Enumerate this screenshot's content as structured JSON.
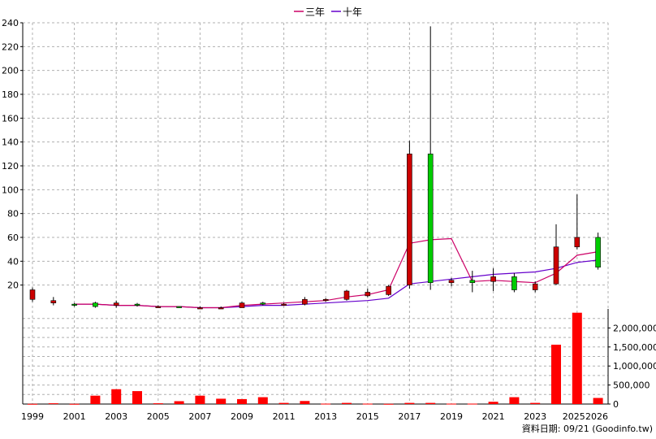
{
  "chart_data": {
    "type": "candlestick",
    "legend": {
      "placement": "top-center",
      "items": [
        {
          "name": "三年",
          "color": "#cc0066"
        },
        {
          "name": "十年",
          "color": "#6600cc"
        }
      ]
    },
    "price_axis": {
      "ylim": [
        0,
        240
      ],
      "ticks": [
        "20",
        "40",
        "60",
        "80",
        "100",
        "120",
        "140",
        "160",
        "180",
        "200",
        "220",
        "240"
      ],
      "side": "left"
    },
    "volume_axis": {
      "ylim": [
        0,
        2500000
      ],
      "ticks": [
        "0",
        "500,000",
        "1,000,000",
        "1,500,000",
        "2,000,000"
      ],
      "side": "right"
    },
    "x_ticks": [
      "1999",
      "2001",
      "2003",
      "2005",
      "2007",
      "2009",
      "2011",
      "2013",
      "2015",
      "2017",
      "2019",
      "2021",
      "2023",
      "2025",
      "2026"
    ],
    "grid": true,
    "candles": [
      {
        "year": 1999,
        "open": 8,
        "high": 18,
        "low": 6,
        "close": 16
      },
      {
        "year": 2000,
        "open": 5,
        "high": 10,
        "low": 3,
        "close": 7
      },
      {
        "year": 2001,
        "open": 4,
        "high": 5,
        "low": 2,
        "close": 3
      },
      {
        "year": 2002,
        "open": 5,
        "high": 6,
        "low": 1,
        "close": 2
      },
      {
        "year": 2003,
        "open": 3,
        "high": 7,
        "low": 1,
        "close": 5
      },
      {
        "year": 2004,
        "open": 4,
        "high": 5,
        "low": 2,
        "close": 3
      },
      {
        "year": 2005,
        "open": 2,
        "high": 3,
        "low": 1,
        "close": 2
      },
      {
        "year": 2006,
        "open": 2,
        "high": 2,
        "low": 1,
        "close": 1
      },
      {
        "year": 2007,
        "open": 1,
        "high": 2,
        "low": 0,
        "close": 1
      },
      {
        "year": 2008,
        "open": 1,
        "high": 2,
        "low": 0,
        "close": 1
      },
      {
        "year": 2009,
        "open": 1,
        "high": 6,
        "low": 1,
        "close": 5
      },
      {
        "year": 2010,
        "open": 5,
        "high": 6,
        "low": 3,
        "close": 4
      },
      {
        "year": 2011,
        "open": 4,
        "high": 5,
        "low": 3,
        "close": 4
      },
      {
        "year": 2012,
        "open": 4,
        "high": 10,
        "low": 3,
        "close": 8
      },
      {
        "year": 2013,
        "open": 7,
        "high": 9,
        "low": 6,
        "close": 8
      },
      {
        "year": 2014,
        "open": 8,
        "high": 16,
        "low": 7,
        "close": 15
      },
      {
        "year": 2015,
        "open": 11,
        "high": 17,
        "low": 10,
        "close": 14
      },
      {
        "year": 2016,
        "open": 12,
        "high": 20,
        "low": 11,
        "close": 19
      },
      {
        "year": 2017,
        "open": 20,
        "high": 141,
        "low": 17,
        "close": 130
      },
      {
        "year": 2018,
        "open": 130,
        "high": 237,
        "low": 16,
        "close": 22
      },
      {
        "year": 2019,
        "open": 22,
        "high": 26,
        "low": 19,
        "close": 24
      },
      {
        "year": 2020,
        "open": 24,
        "high": 32,
        "low": 14,
        "close": 22
      },
      {
        "year": 2021,
        "open": 23,
        "high": 34,
        "low": 15,
        "close": 27
      },
      {
        "year": 2022,
        "open": 27,
        "high": 30,
        "low": 14,
        "close": 16
      },
      {
        "year": 2023,
        "open": 16,
        "high": 23,
        "low": 14,
        "close": 21
      },
      {
        "year": 2024,
        "open": 21,
        "high": 71,
        "low": 20,
        "close": 52
      },
      {
        "year": 2025,
        "open": 52,
        "high": 96,
        "low": 50,
        "close": 60
      },
      {
        "year": 2026,
        "open": 60,
        "high": 64,
        "low": 33,
        "close": 35
      }
    ],
    "ma_3y": [
      {
        "year": 2001,
        "value": 4
      },
      {
        "year": 2002,
        "value": 4
      },
      {
        "year": 2003,
        "value": 3
      },
      {
        "year": 2004,
        "value": 3
      },
      {
        "year": 2005,
        "value": 2
      },
      {
        "year": 2006,
        "value": 2
      },
      {
        "year": 2007,
        "value": 1
      },
      {
        "year": 2008,
        "value": 1
      },
      {
        "year": 2009,
        "value": 3
      },
      {
        "year": 2010,
        "value": 4
      },
      {
        "year": 2011,
        "value": 5
      },
      {
        "year": 2012,
        "value": 6
      },
      {
        "year": 2013,
        "value": 7
      },
      {
        "year": 2014,
        "value": 10
      },
      {
        "year": 2015,
        "value": 12
      },
      {
        "year": 2016,
        "value": 16
      },
      {
        "year": 2017,
        "value": 55
      },
      {
        "year": 2018,
        "value": 58
      },
      {
        "year": 2019,
        "value": 59
      },
      {
        "year": 2020,
        "value": 23
      },
      {
        "year": 2021,
        "value": 24
      },
      {
        "year": 2022,
        "value": 23
      },
      {
        "year": 2023,
        "value": 22
      },
      {
        "year": 2024,
        "value": 30
      },
      {
        "year": 2025,
        "value": 45
      },
      {
        "year": 2026,
        "value": 48
      }
    ],
    "ma_10y": [
      {
        "year": 2001,
        "value": 4
      },
      {
        "year": 2002,
        "value": 4
      },
      {
        "year": 2003,
        "value": 3
      },
      {
        "year": 2004,
        "value": 3
      },
      {
        "year": 2005,
        "value": 2
      },
      {
        "year": 2006,
        "value": 2
      },
      {
        "year": 2007,
        "value": 1
      },
      {
        "year": 2008,
        "value": 1
      },
      {
        "year": 2009,
        "value": 2
      },
      {
        "year": 2010,
        "value": 3
      },
      {
        "year": 2011,
        "value": 3
      },
      {
        "year": 2012,
        "value": 4
      },
      {
        "year": 2013,
        "value": 5
      },
      {
        "year": 2014,
        "value": 6
      },
      {
        "year": 2015,
        "value": 7
      },
      {
        "year": 2016,
        "value": 9
      },
      {
        "year": 2017,
        "value": 21
      },
      {
        "year": 2018,
        "value": 23
      },
      {
        "year": 2019,
        "value": 25
      },
      {
        "year": 2020,
        "value": 27
      },
      {
        "year": 2021,
        "value": 29
      },
      {
        "year": 2022,
        "value": 30
      },
      {
        "year": 2023,
        "value": 31
      },
      {
        "year": 2024,
        "value": 34
      },
      {
        "year": 2025,
        "value": 39
      },
      {
        "year": 2026,
        "value": 41
      }
    ],
    "volume": [
      {
        "year": 1999,
        "value": 5000
      },
      {
        "year": 2000,
        "value": 20000
      },
      {
        "year": 2001,
        "value": 5000
      },
      {
        "year": 2002,
        "value": 220000
      },
      {
        "year": 2003,
        "value": 390000
      },
      {
        "year": 2004,
        "value": 340000
      },
      {
        "year": 2005,
        "value": 20000
      },
      {
        "year": 2006,
        "value": 75000
      },
      {
        "year": 2007,
        "value": 220000
      },
      {
        "year": 2008,
        "value": 140000
      },
      {
        "year": 2009,
        "value": 130000
      },
      {
        "year": 2010,
        "value": 180000
      },
      {
        "year": 2011,
        "value": 30000
      },
      {
        "year": 2012,
        "value": 80000
      },
      {
        "year": 2013,
        "value": 10000
      },
      {
        "year": 2014,
        "value": 30000
      },
      {
        "year": 2015,
        "value": 10000
      },
      {
        "year": 2016,
        "value": 5000
      },
      {
        "year": 2017,
        "value": 30000
      },
      {
        "year": 2018,
        "value": 30000
      },
      {
        "year": 2019,
        "value": 10000
      },
      {
        "year": 2020,
        "value": 10000
      },
      {
        "year": 2021,
        "value": 60000
      },
      {
        "year": 2022,
        "value": 180000
      },
      {
        "year": 2023,
        "value": 30000
      },
      {
        "year": 2024,
        "value": 1560000
      },
      {
        "year": 2025,
        "value": 2400000
      },
      {
        "year": 2026,
        "value": 160000
      }
    ],
    "colors": {
      "up": "#cc0000",
      "down": "#00cc00",
      "volume": "#ff0000",
      "grid": "#b0b0b0"
    }
  },
  "footer": {
    "source_text": "資料日期: 09/21  (Goodinfo.tw)"
  }
}
